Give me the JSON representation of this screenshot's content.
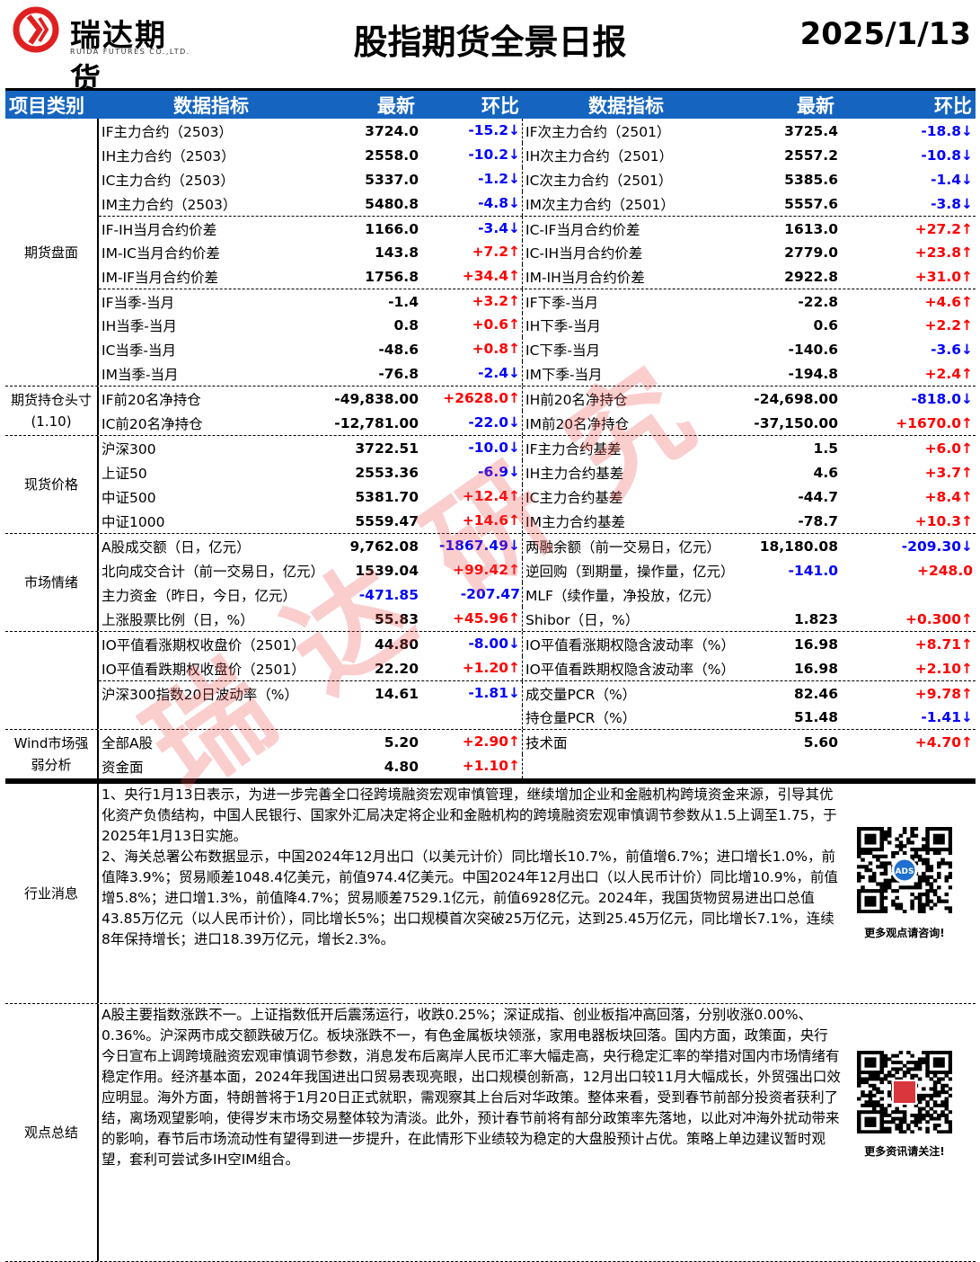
{
  "header": {
    "logo_cn": "瑞达期货",
    "logo_en": "RUIDA FUTURES CO.,LTD.",
    "title": "股指期货全景日报",
    "date": "2025/1/13"
  },
  "columns": [
    "项目类别",
    "数据指标",
    "最新",
    "环比",
    "数据指标",
    "最新",
    "环比"
  ],
  "colors": {
    "header_bg": "#1565c0",
    "up": "#ff0000",
    "down": "#0000ff"
  },
  "watermark": "瑞达研究",
  "sections": [
    {
      "category": "期货盘面",
      "groups": [
        [
          [
            "IF主力合约（2503）",
            "3724.0",
            "",
            "-15.2↓",
            "down",
            "IF次主力合约（2501）",
            "3725.4",
            "",
            "-18.8↓",
            "down"
          ],
          [
            "IH主力合约（2503）",
            "2558.0",
            "",
            "-10.2↓",
            "down",
            "IH次主力合约（2501）",
            "2557.2",
            "",
            "-10.8↓",
            "down"
          ],
          [
            "IC主力合约（2503）",
            "5337.0",
            "",
            "-1.2↓",
            "down",
            "IC次主力合约（2501）",
            "5385.6",
            "",
            "-1.4↓",
            "down"
          ],
          [
            "IM主力合约（2503）",
            "5480.8",
            "",
            "-4.8↓",
            "down",
            "IM次主力合约（2501）",
            "5557.6",
            "",
            "-3.8↓",
            "down"
          ]
        ],
        [
          [
            "IF-IH当月合约价差",
            "1166.0",
            "",
            "-3.4↓",
            "down",
            "IC-IF当月合约价差",
            "1613.0",
            "",
            "+27.2↑",
            "up"
          ],
          [
            "IM-IC当月合约价差",
            "143.8",
            "",
            "+7.2↑",
            "up",
            "IC-IH当月合约价差",
            "2779.0",
            "",
            "+23.8↑",
            "up"
          ],
          [
            "IM-IF当月合约价差",
            "1756.8",
            "",
            "+34.4↑",
            "up",
            "IM-IH当月合约价差",
            "2922.8",
            "",
            "+31.0↑",
            "up"
          ]
        ],
        [
          [
            "IF当季-当月",
            "-1.4",
            "",
            "+3.2↑",
            "up",
            "IF下季-当月",
            "-22.8",
            "",
            "+4.6↑",
            "up"
          ],
          [
            "IH当季-当月",
            "0.8",
            "",
            "+0.6↑",
            "up",
            "IH下季-当月",
            "0.6",
            "",
            "+2.2↑",
            "up"
          ],
          [
            "IC当季-当月",
            "-48.6",
            "",
            "+0.8↑",
            "up",
            "IC下季-当月",
            "-140.6",
            "",
            "-3.6↓",
            "down"
          ],
          [
            "IM当季-当月",
            "-76.8",
            "",
            "-2.4↓",
            "down",
            "IM下季-当月",
            "-194.8",
            "",
            "+2.4↑",
            "up"
          ]
        ]
      ]
    },
    {
      "category": "期货持仓头寸\n(1.10)",
      "groups": [
        [
          [
            "IF前20名净持仓",
            "-49,838.00",
            "",
            "+2628.0↑",
            "up",
            "IH前20名净持仓",
            "-24,698.00",
            "",
            "-818.0↓",
            "down"
          ],
          [
            "IC前20名净持仓",
            "-12,781.00",
            "",
            "-22.0↓",
            "down",
            "IM前20名净持仓",
            "-37,150.00",
            "",
            "+1670.0↑",
            "up"
          ]
        ]
      ]
    },
    {
      "category": "现货价格",
      "groups": [
        [
          [
            "沪深300",
            "3722.51",
            "",
            "-10.0↓",
            "down",
            "IF主力合约基差",
            "1.5",
            "",
            "+6.0↑",
            "up"
          ],
          [
            "上证50",
            "2553.36",
            "",
            "-6.9↓",
            "down",
            "IH主力合约基差",
            "4.6",
            "",
            "+3.7↑",
            "up"
          ],
          [
            "中证500",
            "5381.70",
            "",
            "+12.4↑",
            "up",
            "IC主力合约基差",
            "-44.7",
            "",
            "+8.4↑",
            "up"
          ],
          [
            "中证1000",
            "5559.47",
            "",
            "+14.6↑",
            "up",
            "IM主力合约基差",
            "-78.7",
            "",
            "+10.3↑",
            "up"
          ]
        ]
      ]
    },
    {
      "category": "市场情绪",
      "groups": [
        [
          [
            "A股成交额（日，亿元）",
            "9,762.08",
            "",
            "-1867.49↓",
            "down",
            "两融余额（前一交易日，亿元）",
            "18,180.08",
            "",
            "-209.30↓",
            "down"
          ],
          [
            "北向成交合计（前一交易日，亿元）",
            "1539.04",
            "",
            "+99.42↑",
            "up",
            "逆回购（到期量，操作量，亿元）",
            "-141.0",
            "down",
            "+248.0",
            "up"
          ],
          [
            "主力资金（昨日，今日，亿元）",
            "-471.85",
            "down",
            "-207.47",
            "down",
            "MLF（续作量，净投放，亿元）",
            "",
            "",
            "",
            ""
          ],
          [
            "上涨股票比例（日，%）",
            "55.83",
            "",
            "+45.96↑",
            "up",
            "Shibor（日，%）",
            "1.823",
            "",
            "+0.300↑",
            "up"
          ]
        ]
      ]
    },
    {
      "category": "",
      "groups": [
        [
          [
            "IO平值看涨期权收盘价（2501）",
            "44.80",
            "",
            "-8.00↓",
            "down",
            "IO平值看涨期权隐含波动率（%）",
            "16.98",
            "",
            "+8.71↑",
            "up"
          ],
          [
            "IO平值看跌期权收盘价（2501）",
            "22.20",
            "",
            "+1.20↑",
            "up",
            "IO平值看跌期权隐含波动率（%）",
            "16.98",
            "",
            "+2.10↑",
            "up"
          ]
        ],
        [
          [
            "沪深300指数20日波动率（%）",
            "14.61",
            "",
            "-1.81↓",
            "down",
            "成交量PCR（%）",
            "82.46",
            "",
            "+9.78↑",
            "up"
          ],
          [
            "",
            "",
            "",
            "",
            "",
            "持仓量PCR（%）",
            "51.48",
            "",
            "-1.41↓",
            "down"
          ]
        ]
      ]
    },
    {
      "category": "Wind市场强\n弱分析",
      "groups": [
        [
          [
            "全部A股",
            "5.20",
            "",
            "+2.90↑",
            "up",
            "技术面",
            "5.60",
            "",
            "+4.70↑",
            "up"
          ],
          [
            "资金面",
            "4.80",
            "",
            "+1.10↑",
            "up",
            "",
            "",
            "",
            "",
            ""
          ]
        ]
      ]
    }
  ],
  "news": {
    "category": "行业消息",
    "paragraphs": [
      "1、央行1月13日表示，为进一步完善全口径跨境融资宏观审慎管理，继续增加企业和金融机构跨境资金来源，引导其优化资产负债结构，中国人民银行、国家外汇局决定将企业和金融机构的跨境融资宏观审慎调节参数从1.5上调至1.75，于2025年1月13日实施。",
      "2、海关总署公布数据显示，中国2024年12月出口（以美元计价）同比增长10.7%，前值增6.7%；进口增长1.0%，前值降3.9%；贸易顺差1048.4亿美元，前值974.4亿美元。中国2024年12月出口（以人民币计价）同比增10.9%，前值增5.8%；进口增1.3%，前值降4.7%；贸易顺差7529.1亿元，前值6928亿元。2024年，我国货物贸易进出口总值43.85万亿元（以人民币计价），同比增长5%；出口规模首次突破25万亿元，达到25.45万亿元，同比增长7.1%，连续8年保持增长；进口18.39万亿元，增长2.3%。"
    ],
    "qr_caption": "更多观点请咨询!",
    "qr_badge": "ADS"
  },
  "summary": {
    "category": "观点总结",
    "text": "A股主要指数涨跌不一。上证指数低开后震荡运行，收跌0.25%；深证成指、创业板指冲高回落，分别收涨0.00%、0.36%。沪深两市成交额跌破万亿。板块涨跌不一，有色金属板块领涨，家用电器板块回落。国内方面，政策面，央行今日宣布上调跨境融资宏观审慎调节参数，消息发布后离岸人民币汇率大幅走高，央行稳定汇率的举措对国内市场情绪有稳定作用。经济基本面，2024年我国进出口贸易表现亮眼，出口规模创新高，12月出口较11月大幅成长，外贸强出口效应明显。海外方面，特朗普将于1月20日正式就职，需观察其上台后对华政策。整体来看，受到春节前部分投资者获利了结，离场观望影响，使得岁末市场交易整体较为清淡。此外，预计春节前将有部分政策率先落地，以此对冲海外扰动带来的影响，春节后市场流动性有望得到进一步提升，在此情形下业绩较为稳定的大盘股预计占优。策略上单边建议暂时观望，套利可尝试多IH空IM组合。",
    "qr_caption": "更多资讯请关注!"
  }
}
